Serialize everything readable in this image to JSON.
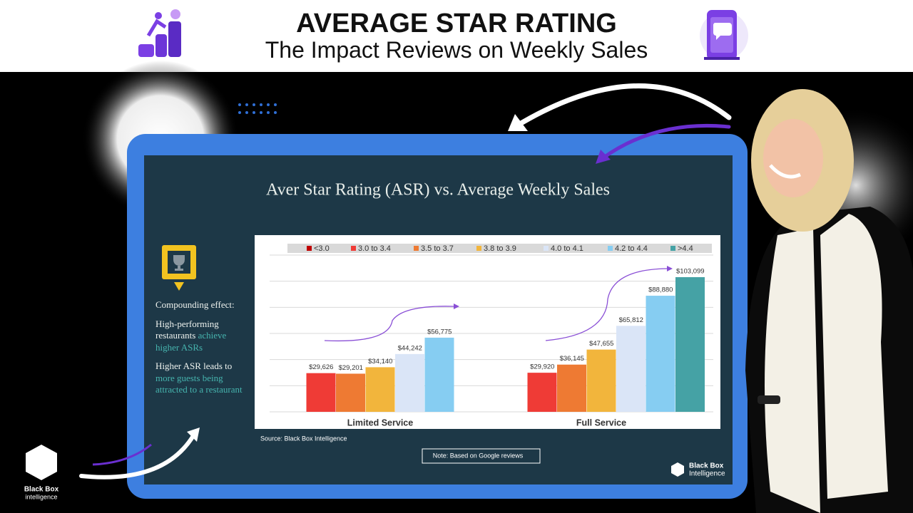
{
  "header": {
    "title": "AVERAGE STAR RATING",
    "subtitle": "The Impact Reviews on Weekly Sales"
  },
  "slide": {
    "sidebar": {
      "heading": "Compounding effect:",
      "points": [
        {
          "lead": "High-performing restaurants",
          "highlight": "achieve higher ASRs"
        },
        {
          "lead": "Higher ASR leads to",
          "highlight": "more guests being attracted to a restaurant"
        }
      ]
    },
    "source": "Source: Black Box Intelligence",
    "note": "Note: Based on Google reviews",
    "logo": [
      "Black Box",
      "Intelligence"
    ]
  },
  "brand": [
    "Black Box",
    "intelligence"
  ],
  "chart_data": {
    "type": "bar",
    "title": "Aver Star Rating (ASR) vs. Average Weekly Sales",
    "categories": [
      "Limited Service",
      "Full Service"
    ],
    "series": [
      {
        "name": "<3.0",
        "color": "#c00000",
        "values": [
          null,
          null
        ],
        "value_labels": [
          null,
          null
        ]
      },
      {
        "name": "3.0 to 3.4",
        "color": "#ef3b36",
        "values": [
          29626,
          29920
        ],
        "value_labels": [
          "$29,626",
          "$29,920"
        ]
      },
      {
        "name": "3.5 to 3.7",
        "color": "#ee7a33",
        "values": [
          29201,
          36145
        ],
        "value_labels": [
          "$29,201",
          "$36,145"
        ]
      },
      {
        "name": "3.8 to 3.9",
        "color": "#f2b53c",
        "values": [
          34140,
          47655
        ],
        "value_labels": [
          "$34,140",
          "$47,655"
        ]
      },
      {
        "name": "4.0 to 4.1",
        "color": "#dae5f7",
        "values": [
          44242,
          65812
        ],
        "value_labels": [
          "$44,242",
          "$65,812"
        ]
      },
      {
        "name": "4.2 to 4.4",
        "color": "#86cdf2",
        "values": [
          56775,
          88880
        ],
        "value_labels": [
          "$56,775",
          "$88,880"
        ]
      },
      {
        "name": ">4.4",
        "color": "#45a2a5",
        "values": [
          null,
          103099
        ],
        "value_labels": [
          null,
          "$103,099"
        ]
      }
    ],
    "ylim": [
      0,
      120000
    ],
    "yticks": [
      0,
      20000,
      40000,
      60000,
      80000,
      100000,
      120000
    ],
    "grid": true
  }
}
